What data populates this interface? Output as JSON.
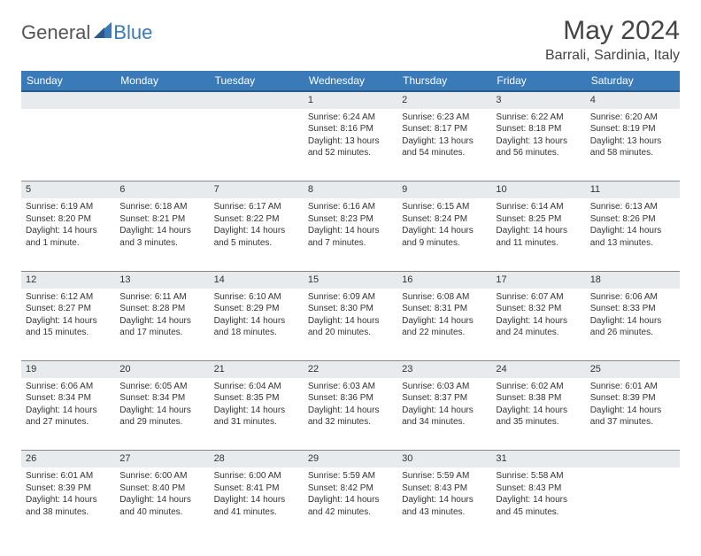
{
  "brand": {
    "general": "General",
    "blue": "Blue",
    "logo_color": "#3a7ab8"
  },
  "title": "May 2024",
  "location": "Barrali, Sardinia, Italy",
  "header_bg": "#3a7ab8",
  "daynum_bg": "#e8ebee",
  "weekdays": [
    "Sunday",
    "Monday",
    "Tuesday",
    "Wednesday",
    "Thursday",
    "Friday",
    "Saturday"
  ],
  "weeks": [
    {
      "nums": [
        "",
        "",
        "",
        "1",
        "2",
        "3",
        "4"
      ],
      "cells": [
        "",
        "",
        "",
        "Sunrise: 6:24 AM\nSunset: 8:16 PM\nDaylight: 13 hours and 52 minutes.",
        "Sunrise: 6:23 AM\nSunset: 8:17 PM\nDaylight: 13 hours and 54 minutes.",
        "Sunrise: 6:22 AM\nSunset: 8:18 PM\nDaylight: 13 hours and 56 minutes.",
        "Sunrise: 6:20 AM\nSunset: 8:19 PM\nDaylight: 13 hours and 58 minutes."
      ]
    },
    {
      "nums": [
        "5",
        "6",
        "7",
        "8",
        "9",
        "10",
        "11"
      ],
      "cells": [
        "Sunrise: 6:19 AM\nSunset: 8:20 PM\nDaylight: 14 hours and 1 minute.",
        "Sunrise: 6:18 AM\nSunset: 8:21 PM\nDaylight: 14 hours and 3 minutes.",
        "Sunrise: 6:17 AM\nSunset: 8:22 PM\nDaylight: 14 hours and 5 minutes.",
        "Sunrise: 6:16 AM\nSunset: 8:23 PM\nDaylight: 14 hours and 7 minutes.",
        "Sunrise: 6:15 AM\nSunset: 8:24 PM\nDaylight: 14 hours and 9 minutes.",
        "Sunrise: 6:14 AM\nSunset: 8:25 PM\nDaylight: 14 hours and 11 minutes.",
        "Sunrise: 6:13 AM\nSunset: 8:26 PM\nDaylight: 14 hours and 13 minutes."
      ]
    },
    {
      "nums": [
        "12",
        "13",
        "14",
        "15",
        "16",
        "17",
        "18"
      ],
      "cells": [
        "Sunrise: 6:12 AM\nSunset: 8:27 PM\nDaylight: 14 hours and 15 minutes.",
        "Sunrise: 6:11 AM\nSunset: 8:28 PM\nDaylight: 14 hours and 17 minutes.",
        "Sunrise: 6:10 AM\nSunset: 8:29 PM\nDaylight: 14 hours and 18 minutes.",
        "Sunrise: 6:09 AM\nSunset: 8:30 PM\nDaylight: 14 hours and 20 minutes.",
        "Sunrise: 6:08 AM\nSunset: 8:31 PM\nDaylight: 14 hours and 22 minutes.",
        "Sunrise: 6:07 AM\nSunset: 8:32 PM\nDaylight: 14 hours and 24 minutes.",
        "Sunrise: 6:06 AM\nSunset: 8:33 PM\nDaylight: 14 hours and 26 minutes."
      ]
    },
    {
      "nums": [
        "19",
        "20",
        "21",
        "22",
        "23",
        "24",
        "25"
      ],
      "cells": [
        "Sunrise: 6:06 AM\nSunset: 8:34 PM\nDaylight: 14 hours and 27 minutes.",
        "Sunrise: 6:05 AM\nSunset: 8:34 PM\nDaylight: 14 hours and 29 minutes.",
        "Sunrise: 6:04 AM\nSunset: 8:35 PM\nDaylight: 14 hours and 31 minutes.",
        "Sunrise: 6:03 AM\nSunset: 8:36 PM\nDaylight: 14 hours and 32 minutes.",
        "Sunrise: 6:03 AM\nSunset: 8:37 PM\nDaylight: 14 hours and 34 minutes.",
        "Sunrise: 6:02 AM\nSunset: 8:38 PM\nDaylight: 14 hours and 35 minutes.",
        "Sunrise: 6:01 AM\nSunset: 8:39 PM\nDaylight: 14 hours and 37 minutes."
      ]
    },
    {
      "nums": [
        "26",
        "27",
        "28",
        "29",
        "30",
        "31",
        ""
      ],
      "cells": [
        "Sunrise: 6:01 AM\nSunset: 8:39 PM\nDaylight: 14 hours and 38 minutes.",
        "Sunrise: 6:00 AM\nSunset: 8:40 PM\nDaylight: 14 hours and 40 minutes.",
        "Sunrise: 6:00 AM\nSunset: 8:41 PM\nDaylight: 14 hours and 41 minutes.",
        "Sunrise: 5:59 AM\nSunset: 8:42 PM\nDaylight: 14 hours and 42 minutes.",
        "Sunrise: 5:59 AM\nSunset: 8:43 PM\nDaylight: 14 hours and 43 minutes.",
        "Sunrise: 5:58 AM\nSunset: 8:43 PM\nDaylight: 14 hours and 45 minutes.",
        ""
      ]
    }
  ]
}
